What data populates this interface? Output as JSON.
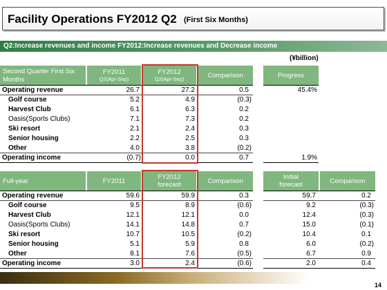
{
  "title": {
    "main": "Facility Operations FY2012 Q2",
    "sub": "(First Six Months)"
  },
  "subtitle": "Q2:Increase revenues and income  FY2012:Increase revenues and Decrease income",
  "unit": "(¥billion)",
  "q2": {
    "header": {
      "label": "Second Quarter First Six Months",
      "fy2011": "FY2011",
      "fy2011_sub": "Q2(Apr-Sep)",
      "fy2012": "FY2012",
      "fy2012_sub": "Q2(Apr-Sep)",
      "comparison": "Comparison",
      "progress": "Progress"
    },
    "rows": [
      {
        "label": "Operating revenue",
        "v2011": "26.7",
        "v2012": "27.2",
        "comp": "0.5",
        "progress": "45.4%"
      },
      {
        "label": "Golf course",
        "v2011": "5.2",
        "v2012": "4.9",
        "comp": "(0.3)",
        "progress": ""
      },
      {
        "label": "Harvest Club",
        "v2011": "6.1",
        "v2012": "6.3",
        "comp": "0.2",
        "progress": ""
      },
      {
        "label": "Oasis(Sports Clubs)",
        "v2011": "7.1",
        "v2012": "7.3",
        "comp": "0.2",
        "progress": ""
      },
      {
        "label": "Ski resort",
        "v2011": "2.1",
        "v2012": "2.4",
        "comp": "0.3",
        "progress": ""
      },
      {
        "label": "Senior housing",
        "v2011": "2.2",
        "v2012": "2.5",
        "comp": "0.3",
        "progress": ""
      },
      {
        "label": "Other",
        "v2011": "4.0",
        "v2012": "3.8",
        "comp": "(0.2)",
        "progress": ""
      },
      {
        "label": "Operating income",
        "v2011": "(0.7)",
        "v2012": "0.0",
        "comp": "0.7",
        "progress": "1.9%"
      }
    ]
  },
  "fy": {
    "header": {
      "label": "Full-year",
      "fy2011": "FY2011",
      "fy2012": "FY2012",
      "fy2012_sub": "forecast",
      "comparison": "Comparison",
      "initial": "Initial",
      "initial_sub": "forecast",
      "comparison2": "Comparison"
    },
    "rows": [
      {
        "label": "Operating revenue",
        "v2011": "59.6",
        "v2012": "59.9",
        "comp": "0.3",
        "initial": "59.7",
        "comp2": "0.2"
      },
      {
        "label": "Golf course",
        "v2011": "9.5",
        "v2012": "8.9",
        "comp": "(0.6)",
        "initial": "9.2",
        "comp2": "(0.3)"
      },
      {
        "label": "Harvest Club",
        "v2011": "12.1",
        "v2012": "12.1",
        "comp": "0.0",
        "initial": "12.4",
        "comp2": "(0.3)"
      },
      {
        "label": "Oasis(Sports Clubs)",
        "v2011": "14.1",
        "v2012": "14.8",
        "comp": "0.7",
        "initial": "15.0",
        "comp2": "(0.1)"
      },
      {
        "label": "Ski resort",
        "v2011": "10.7",
        "v2012": "10.5",
        "comp": "(0.2)",
        "initial": "10.4",
        "comp2": "0.1"
      },
      {
        "label": "Senior housing",
        "v2011": "5.1",
        "v2012": "5.9",
        "comp": "0.8",
        "initial": "6.0",
        "comp2": "(0.2)"
      },
      {
        "label": "Other",
        "v2011": "8.1",
        "v2012": "7.6",
        "comp": "(0.5)",
        "initial": "6.7",
        "comp2": "0.9"
      },
      {
        "label": "Operating income",
        "v2011": "3.0",
        "v2012": "2.4",
        "comp": "(0.6)",
        "initial": "2.0",
        "comp2": "0.4"
      }
    ]
  },
  "colors": {
    "header_green": "#7fb77e",
    "accent_red": "#c0392b",
    "banner_green": "#2f7f45"
  },
  "page_number": "14"
}
